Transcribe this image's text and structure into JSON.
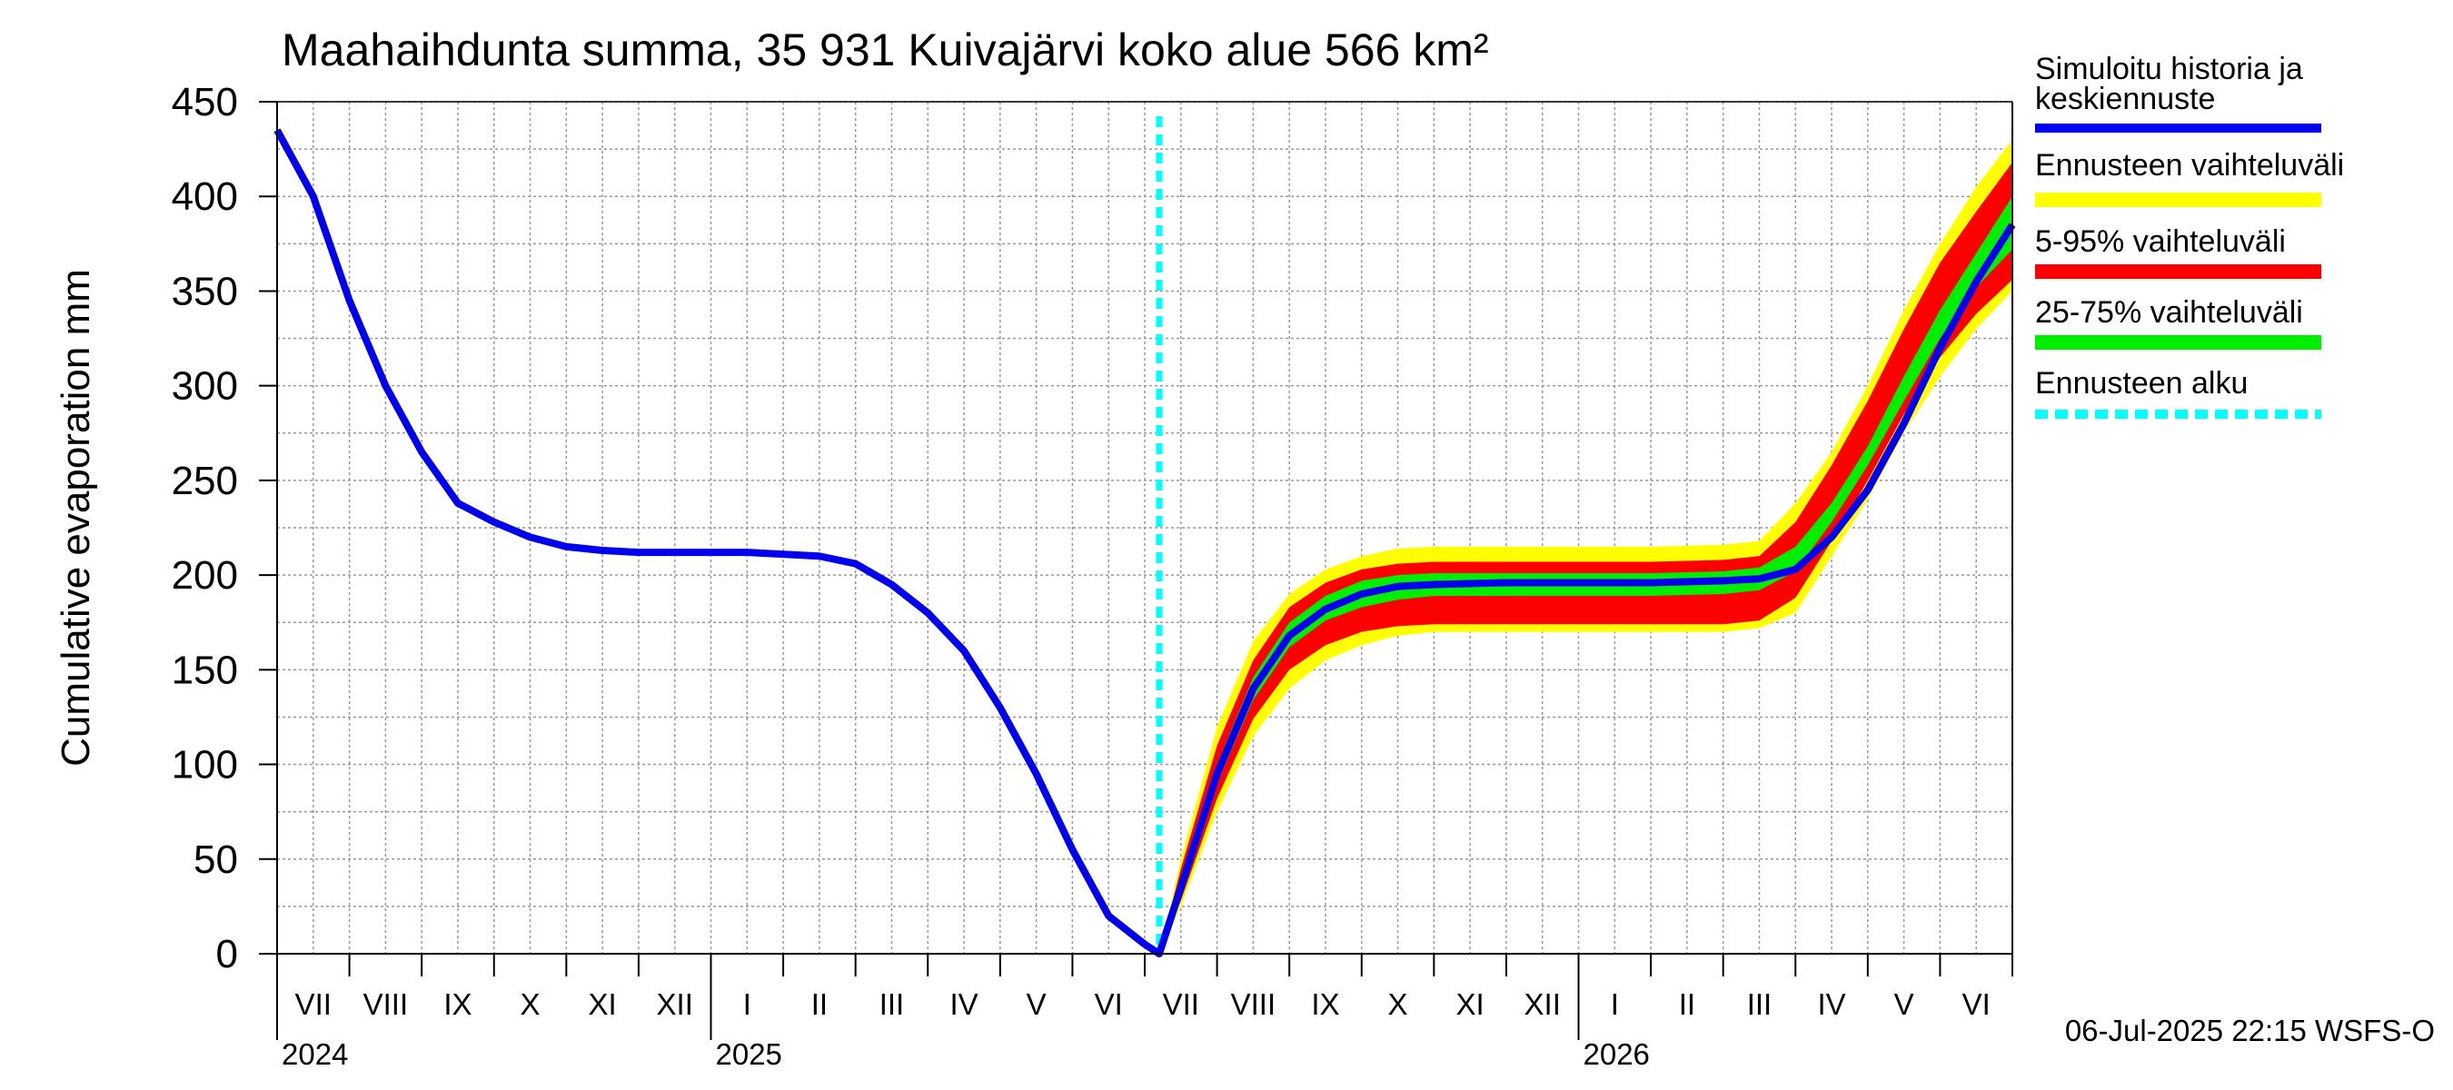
{
  "chart_data": {
    "type": "line",
    "title": "Maahaihdunta summa, 35 931 Kuivajärvi koko alue 566 km²",
    "ylabel": "Cumulative evaporation   mm",
    "xlabel": "",
    "ylim": [
      0,
      450
    ],
    "xlim": [
      0,
      24
    ],
    "yticks": [
      0,
      50,
      100,
      150,
      200,
      250,
      300,
      350,
      400,
      450
    ],
    "month_labels": [
      "VII",
      "VIII",
      "IX",
      "X",
      "XI",
      "XII",
      "I",
      "II",
      "III",
      "IV",
      "V",
      "VI",
      "VII",
      "VIII",
      "IX",
      "X",
      "XI",
      "XII",
      "I",
      "II",
      "III",
      "IV",
      "V",
      "VI"
    ],
    "year_labels": [
      {
        "label": "2024",
        "month_index": 0
      },
      {
        "label": "2025",
        "month_index": 6
      },
      {
        "label": "2026",
        "month_index": 18
      }
    ],
    "forecast_start_month": 12.2,
    "timestamp": "06-Jul-2025 22:15 WSFS-O",
    "legend": {
      "placement": "right",
      "items": [
        {
          "label": "Simuloitu historia ja keskiennuste",
          "color": "#0000ee",
          "style": "line"
        },
        {
          "label": "Ennusteen vaihteluväli",
          "color": "#ffff00",
          "style": "band"
        },
        {
          "label": "5-95% vaihteluväli",
          "color": "#ff0000",
          "style": "band"
        },
        {
          "label": "25-75% vaihteluväli",
          "color": "#00ee00",
          "style": "band"
        },
        {
          "label": "Ennusteen alku",
          "color": "#00ffff",
          "style": "dotted"
        }
      ]
    },
    "series": [
      {
        "name": "Simuloitu historia ja keskiennuste",
        "x": [
          0,
          0.5,
          1,
          1.5,
          2,
          2.5,
          3,
          3.5,
          4,
          4.5,
          5,
          5.5,
          6,
          6.5,
          7,
          7.5,
          8,
          8.5,
          9,
          9.5,
          10,
          10.5,
          11,
          11.5,
          12,
          12.2,
          12.5,
          13,
          13.5,
          14,
          14.5,
          15,
          15.5,
          16,
          17,
          18,
          19,
          20,
          20.5,
          21,
          21.5,
          22,
          22.5,
          23,
          23.5,
          24
        ],
        "values": [
          435,
          400,
          345,
          300,
          265,
          238,
          228,
          220,
          215,
          213,
          212,
          212,
          212,
          212,
          211,
          210,
          206,
          195,
          180,
          160,
          130,
          95,
          55,
          20,
          5,
          0,
          35,
          95,
          140,
          168,
          182,
          190,
          194,
          195,
          196,
          196,
          196,
          197,
          198,
          203,
          220,
          245,
          280,
          320,
          355,
          385
        ]
      },
      {
        "name": "Ennusteen vaihteluväli (upper)",
        "x": [
          12.2,
          12.5,
          13,
          13.5,
          14,
          14.5,
          15,
          15.5,
          16,
          17,
          18,
          19,
          20,
          20.5,
          21,
          21.5,
          22,
          22.5,
          23,
          23.5,
          24
        ],
        "values": [
          0,
          50,
          120,
          165,
          190,
          203,
          210,
          214,
          215,
          215,
          215,
          215,
          216,
          218,
          238,
          265,
          300,
          340,
          375,
          405,
          430
        ]
      },
      {
        "name": "Ennusteen vaihteluväli (lower)",
        "x": [
          12.2,
          12.5,
          13,
          13.5,
          14,
          14.5,
          15,
          15.5,
          16,
          17,
          18,
          19,
          20,
          20.5,
          21,
          21.5,
          22,
          22.5,
          23,
          23.5,
          24
        ],
        "values": [
          0,
          25,
          75,
          115,
          140,
          155,
          163,
          168,
          170,
          170,
          170,
          170,
          170,
          172,
          180,
          210,
          240,
          275,
          305,
          330,
          350
        ]
      },
      {
        "name": "5-95% vaihteluväli (upper)",
        "x": [
          12.2,
          12.5,
          13,
          13.5,
          14,
          14.5,
          15,
          15.5,
          16,
          17,
          18,
          19,
          20,
          20.5,
          21,
          21.5,
          22,
          22.5,
          23,
          23.5,
          24
        ],
        "values": [
          0,
          45,
          110,
          155,
          183,
          196,
          203,
          206,
          207,
          207,
          207,
          207,
          208,
          210,
          228,
          258,
          292,
          330,
          365,
          392,
          418
        ]
      },
      {
        "name": "5-95% vaihteluväli (lower)",
        "x": [
          12.2,
          12.5,
          13,
          13.5,
          14,
          14.5,
          15,
          15.5,
          16,
          17,
          18,
          19,
          20,
          20.5,
          21,
          21.5,
          22,
          22.5,
          23,
          23.5,
          24
        ],
        "values": [
          0,
          28,
          82,
          124,
          150,
          163,
          170,
          173,
          174,
          174,
          174,
          174,
          174,
          176,
          188,
          218,
          250,
          285,
          315,
          338,
          356
        ]
      },
      {
        "name": "25-75% vaihteluväli (upper)",
        "x": [
          12.2,
          12.5,
          13,
          13.5,
          14,
          14.5,
          15,
          15.5,
          16,
          17,
          18,
          19,
          20,
          20.5,
          21,
          21.5,
          22,
          22.5,
          23,
          23.5,
          24
        ],
        "values": [
          0,
          38,
          100,
          146,
          175,
          189,
          197,
          200,
          201,
          201,
          201,
          201,
          202,
          204,
          215,
          238,
          268,
          305,
          340,
          370,
          400
        ]
      },
      {
        "name": "25-75% vaihteluväli (lower)",
        "x": [
          12.2,
          12.5,
          13,
          13.5,
          14,
          14.5,
          15,
          15.5,
          16,
          17,
          18,
          19,
          20,
          20.5,
          21,
          21.5,
          22,
          22.5,
          23,
          23.5,
          24
        ],
        "values": [
          0,
          32,
          90,
          134,
          162,
          176,
          183,
          187,
          189,
          189,
          189,
          189,
          190,
          192,
          202,
          228,
          258,
          292,
          325,
          352,
          372
        ]
      }
    ]
  }
}
